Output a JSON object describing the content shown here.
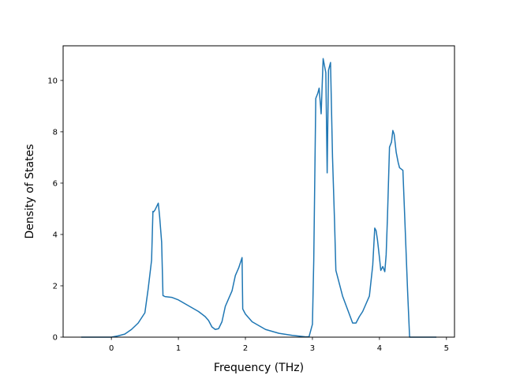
{
  "chart_data": {
    "type": "line",
    "xlabel": "Frequency (THz)",
    "ylabel": "Density of States",
    "xlim": [
      -0.72,
      5.12
    ],
    "ylim": [
      0,
      11.35
    ],
    "xticks": [
      0,
      1,
      2,
      3,
      4,
      5
    ],
    "yticks": [
      0,
      2,
      4,
      6,
      8,
      10
    ],
    "xtick_labels": [
      "0",
      "1",
      "2",
      "3",
      "4",
      "5"
    ],
    "ytick_labels": [
      "0",
      "2",
      "4",
      "6",
      "8",
      "10"
    ],
    "grid": false,
    "line_color": "#1f77b4",
    "series": [
      {
        "x": [
          -0.45,
          0.0,
          0.1,
          0.2,
          0.3,
          0.4,
          0.5,
          0.55,
          0.6,
          0.62,
          0.63,
          0.65,
          0.7,
          0.72,
          0.75,
          0.77,
          0.8,
          0.9,
          1.0,
          1.1,
          1.2,
          1.3,
          1.4,
          1.45,
          1.5,
          1.55,
          1.6,
          1.65,
          1.7,
          1.75,
          1.8,
          1.85,
          1.9,
          1.95,
          1.96,
          2.0,
          2.1,
          2.2,
          2.3,
          2.5,
          2.7,
          2.9,
          2.95,
          3.0,
          3.02,
          3.05,
          3.08,
          3.1,
          3.13,
          3.16,
          3.2,
          3.22,
          3.24,
          3.27,
          3.3,
          3.33,
          3.35,
          3.4,
          3.45,
          3.5,
          3.55,
          3.6,
          3.65,
          3.7,
          3.75,
          3.8,
          3.85,
          3.9,
          3.93,
          3.95,
          3.97,
          4.0,
          4.02,
          4.05,
          4.08,
          4.1,
          4.12,
          4.15,
          4.18,
          4.2,
          4.22,
          4.25,
          4.28,
          4.3,
          4.35,
          4.38,
          4.42,
          4.45,
          4.5,
          4.6,
          4.7,
          4.8,
          4.85
        ],
        "y": [
          0.0,
          0.0,
          0.05,
          0.12,
          0.3,
          0.55,
          0.95,
          1.9,
          3.0,
          4.9,
          4.88,
          4.95,
          5.22,
          4.7,
          3.7,
          1.62,
          1.58,
          1.55,
          1.45,
          1.3,
          1.15,
          1.0,
          0.8,
          0.65,
          0.4,
          0.3,
          0.33,
          0.6,
          1.2,
          1.5,
          1.8,
          2.4,
          2.7,
          3.1,
          1.1,
          0.9,
          0.6,
          0.45,
          0.3,
          0.15,
          0.07,
          0.01,
          0.02,
          0.5,
          3.0,
          9.3,
          9.5,
          9.7,
          8.7,
          10.85,
          10.3,
          6.4,
          10.4,
          10.7,
          7.0,
          4.5,
          2.6,
          2.1,
          1.6,
          1.25,
          0.9,
          0.55,
          0.55,
          0.8,
          1.0,
          1.3,
          1.6,
          2.8,
          4.25,
          4.15,
          3.8,
          3.1,
          2.6,
          2.75,
          2.55,
          3.2,
          4.7,
          7.4,
          7.6,
          8.05,
          7.9,
          7.2,
          6.8,
          6.6,
          6.5,
          4.5,
          1.8,
          0.0,
          0.0,
          0.0,
          0.0,
          0.0,
          0.0
        ]
      }
    ]
  }
}
